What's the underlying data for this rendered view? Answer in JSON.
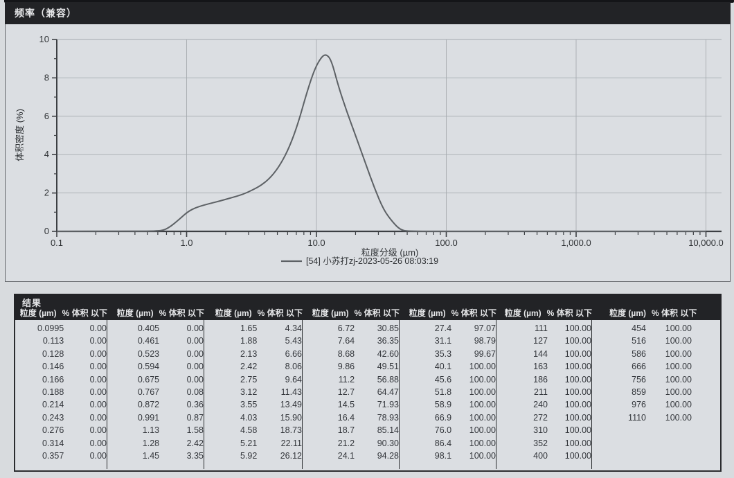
{
  "scan": {
    "paper_color": "#d8dbde",
    "edge_strip_color": "#141518"
  },
  "chart_panel": {
    "title": "频率（兼容）",
    "bar_color": "#222326",
    "plot_bg": "#dbdee2"
  },
  "chart_data": {
    "type": "line",
    "title": "频率（兼容）",
    "xlabel": "粒度分级 (µm)",
    "ylabel": "体积密度 (%)",
    "x_scale": "log",
    "xlim": [
      0.1,
      10000
    ],
    "ylim": [
      0,
      10
    ],
    "x_tick_values": [
      0.1,
      1,
      10,
      100,
      1000,
      10000
    ],
    "x_tick_labels": [
      "0.1",
      "1.0",
      "10.0",
      "100.0",
      "1,000.0",
      "10,000.0"
    ],
    "y_tick_values": [
      0,
      2,
      4,
      6,
      8,
      10
    ],
    "y_minor_ticks": [
      1,
      3,
      5,
      7,
      9
    ],
    "grid": true,
    "legend_position": "bottom-center",
    "series": [
      {
        "name": "[54] 小苏打zj-2023-05-26 08:03:19",
        "color": "#5d6165",
        "x": [
          0.1,
          0.4,
          0.6,
          0.68,
          0.76,
          0.84,
          0.92,
          1.0,
          1.1,
          1.25,
          1.5,
          1.8,
          2.2,
          2.7,
          3.2,
          3.8,
          4.5,
          5.3,
          6.2,
          7.2,
          8.4,
          9.6,
          10.8,
          11.8,
          13.0,
          14.7,
          17.0,
          20.0,
          24.0,
          28.0,
          33.0,
          39.0,
          44.0,
          50.0,
          100.0,
          1000.0,
          10000.0
        ],
        "y": [
          0,
          0,
          0.02,
          0.08,
          0.28,
          0.52,
          0.75,
          0.97,
          1.15,
          1.3,
          1.45,
          1.58,
          1.75,
          1.92,
          2.15,
          2.42,
          2.85,
          3.5,
          4.4,
          5.6,
          7.2,
          8.4,
          9.05,
          9.25,
          8.95,
          7.6,
          6.3,
          5.0,
          3.5,
          2.25,
          1.1,
          0.45,
          0.1,
          0,
          0,
          0,
          0
        ]
      }
    ]
  },
  "results_table": {
    "title": "结果",
    "size_header": "粒度 (µm)",
    "pct_header": "% 体积 以下",
    "groups": [
      {
        "rows": [
          [
            "0.0995",
            "0.00"
          ],
          [
            "0.113",
            "0.00"
          ],
          [
            "0.128",
            "0.00"
          ],
          [
            "0.146",
            "0.00"
          ],
          [
            "0.166",
            "0.00"
          ],
          [
            "0.188",
            "0.00"
          ],
          [
            "0.214",
            "0.00"
          ],
          [
            "0.243",
            "0.00"
          ],
          [
            "0.276",
            "0.00"
          ],
          [
            "0.314",
            "0.00"
          ],
          [
            "0.357",
            "0.00"
          ]
        ]
      },
      {
        "rows": [
          [
            "0.405",
            "0.00"
          ],
          [
            "0.461",
            "0.00"
          ],
          [
            "0.523",
            "0.00"
          ],
          [
            "0.594",
            "0.00"
          ],
          [
            "0.675",
            "0.00"
          ],
          [
            "0.767",
            "0.08"
          ],
          [
            "0.872",
            "0.36"
          ],
          [
            "0.991",
            "0.87"
          ],
          [
            "1.13",
            "1.58"
          ],
          [
            "1.28",
            "2.42"
          ],
          [
            "1.45",
            "3.35"
          ]
        ]
      },
      {
        "rows": [
          [
            "1.65",
            "4.34"
          ],
          [
            "1.88",
            "5.43"
          ],
          [
            "2.13",
            "6.66"
          ],
          [
            "2.42",
            "8.06"
          ],
          [
            "2.75",
            "9.64"
          ],
          [
            "3.12",
            "11.43"
          ],
          [
            "3.55",
            "13.49"
          ],
          [
            "4.03",
            "15.90"
          ],
          [
            "4.58",
            "18.73"
          ],
          [
            "5.21",
            "22.11"
          ],
          [
            "5.92",
            "26.12"
          ]
        ]
      },
      {
        "rows": [
          [
            "6.72",
            "30.85"
          ],
          [
            "7.64",
            "36.35"
          ],
          [
            "8.68",
            "42.60"
          ],
          [
            "9.86",
            "49.51"
          ],
          [
            "11.2",
            "56.88"
          ],
          [
            "12.7",
            "64.47"
          ],
          [
            "14.5",
            "71.93"
          ],
          [
            "16.4",
            "78.93"
          ],
          [
            "18.7",
            "85.14"
          ],
          [
            "21.2",
            "90.30"
          ],
          [
            "24.1",
            "94.28"
          ]
        ]
      },
      {
        "rows": [
          [
            "27.4",
            "97.07"
          ],
          [
            "31.1",
            "98.79"
          ],
          [
            "35.3",
            "99.67"
          ],
          [
            "40.1",
            "100.00"
          ],
          [
            "45.6",
            "100.00"
          ],
          [
            "51.8",
            "100.00"
          ],
          [
            "58.9",
            "100.00"
          ],
          [
            "66.9",
            "100.00"
          ],
          [
            "76.0",
            "100.00"
          ],
          [
            "86.4",
            "100.00"
          ],
          [
            "98.1",
            "100.00"
          ]
        ]
      },
      {
        "rows": [
          [
            "111",
            "100.00"
          ],
          [
            "127",
            "100.00"
          ],
          [
            "144",
            "100.00"
          ],
          [
            "163",
            "100.00"
          ],
          [
            "186",
            "100.00"
          ],
          [
            "211",
            "100.00"
          ],
          [
            "240",
            "100.00"
          ],
          [
            "272",
            "100.00"
          ],
          [
            "310",
            "100.00"
          ],
          [
            "352",
            "100.00"
          ],
          [
            "400",
            "100.00"
          ]
        ]
      },
      {
        "rows": [
          [
            "454",
            "100.00"
          ],
          [
            "516",
            "100.00"
          ],
          [
            "586",
            "100.00"
          ],
          [
            "666",
            "100.00"
          ],
          [
            "756",
            "100.00"
          ],
          [
            "859",
            "100.00"
          ],
          [
            "976",
            "100.00"
          ],
          [
            "1110",
            "100.00"
          ]
        ]
      }
    ]
  }
}
